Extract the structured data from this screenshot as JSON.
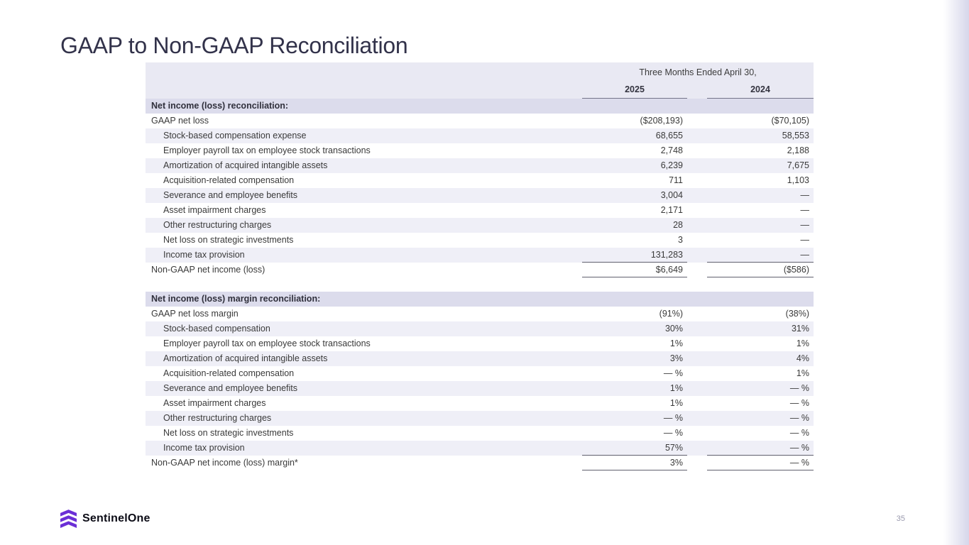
{
  "slide": {
    "title": "GAAP to Non-GAAP Reconciliation",
    "page_number": "35"
  },
  "footer": {
    "brand": "SentinelOne"
  },
  "colors": {
    "accent_purple": "#6b2fd6",
    "title_color": "#32324a",
    "header_band_bg": "#e9e9f3",
    "section_header_bg": "#dcdcec",
    "row_alt_bg": "#efeff7",
    "right_edge_gradient": "#d6d6ea"
  },
  "table": {
    "period_header": "Three Months Ended April 30,",
    "col_2025": "2025",
    "col_2024": "2024",
    "sections": [
      {
        "header": "Net income (loss) reconciliation:",
        "rows": [
          {
            "label": "GAAP net loss",
            "indent": false,
            "y2025": "($208,193)",
            "y2024": "($70,105)",
            "underline": false
          },
          {
            "label": "Stock-based compensation expense",
            "indent": true,
            "y2025": "68,655",
            "y2024": "58,553",
            "underline": false
          },
          {
            "label": "Employer payroll tax on employee stock transactions",
            "indent": true,
            "y2025": "2,748",
            "y2024": "2,188",
            "underline": false
          },
          {
            "label": "Amortization of acquired intangible assets",
            "indent": true,
            "y2025": "6,239",
            "y2024": "7,675",
            "underline": false
          },
          {
            "label": "Acquisition-related compensation",
            "indent": true,
            "y2025": "711",
            "y2024": "1,103",
            "underline": false
          },
          {
            "label": "Severance and employee benefits",
            "indent": true,
            "y2025": "3,004",
            "y2024": "—",
            "underline": false
          },
          {
            "label": "Asset impairment charges",
            "indent": true,
            "y2025": "2,171",
            "y2024": "—",
            "underline": false
          },
          {
            "label": "Other restructuring charges",
            "indent": true,
            "y2025": "28",
            "y2024": "—",
            "underline": false
          },
          {
            "label": "Net loss on strategic investments",
            "indent": true,
            "y2025": "3",
            "y2024": "—",
            "underline": false
          },
          {
            "label": "Income tax provision",
            "indent": true,
            "y2025": "131,283",
            "y2024": "—",
            "underline": true
          },
          {
            "label": "Non-GAAP net income (loss)",
            "indent": false,
            "y2025": "$6,649",
            "y2024": "($586)",
            "underline": true
          }
        ]
      },
      {
        "header": "Net income (loss) margin reconciliation:",
        "rows": [
          {
            "label": "GAAP net loss margin",
            "indent": false,
            "y2025": "(91%)",
            "y2024": "(38%)",
            "underline": false
          },
          {
            "label": "Stock-based compensation",
            "indent": true,
            "y2025": "30%",
            "y2024": "31%",
            "underline": false
          },
          {
            "label": "Employer payroll tax on employee stock transactions",
            "indent": true,
            "y2025": "1%",
            "y2024": "1%",
            "underline": false
          },
          {
            "label": "Amortization of acquired intangible assets",
            "indent": true,
            "y2025": "3%",
            "y2024": "4%",
            "underline": false
          },
          {
            "label": "Acquisition-related compensation",
            "indent": true,
            "y2025": "— %",
            "y2024": "1%",
            "underline": false
          },
          {
            "label": "Severance and employee benefits",
            "indent": true,
            "y2025": "1%",
            "y2024": "— %",
            "underline": false
          },
          {
            "label": "Asset impairment charges",
            "indent": true,
            "y2025": "1%",
            "y2024": "— %",
            "underline": false
          },
          {
            "label": "Other restructuring charges",
            "indent": true,
            "y2025": "— %",
            "y2024": "— %",
            "underline": false
          },
          {
            "label": "Net loss on strategic investments",
            "indent": true,
            "y2025": "— %",
            "y2024": "— %",
            "underline": false
          },
          {
            "label": "Income tax provision",
            "indent": true,
            "y2025": "57%",
            "y2024": "— %",
            "underline": true
          },
          {
            "label": "Non-GAAP net income (loss) margin*",
            "indent": false,
            "y2025": "3%",
            "y2024": "— %",
            "underline": true
          }
        ]
      }
    ]
  }
}
